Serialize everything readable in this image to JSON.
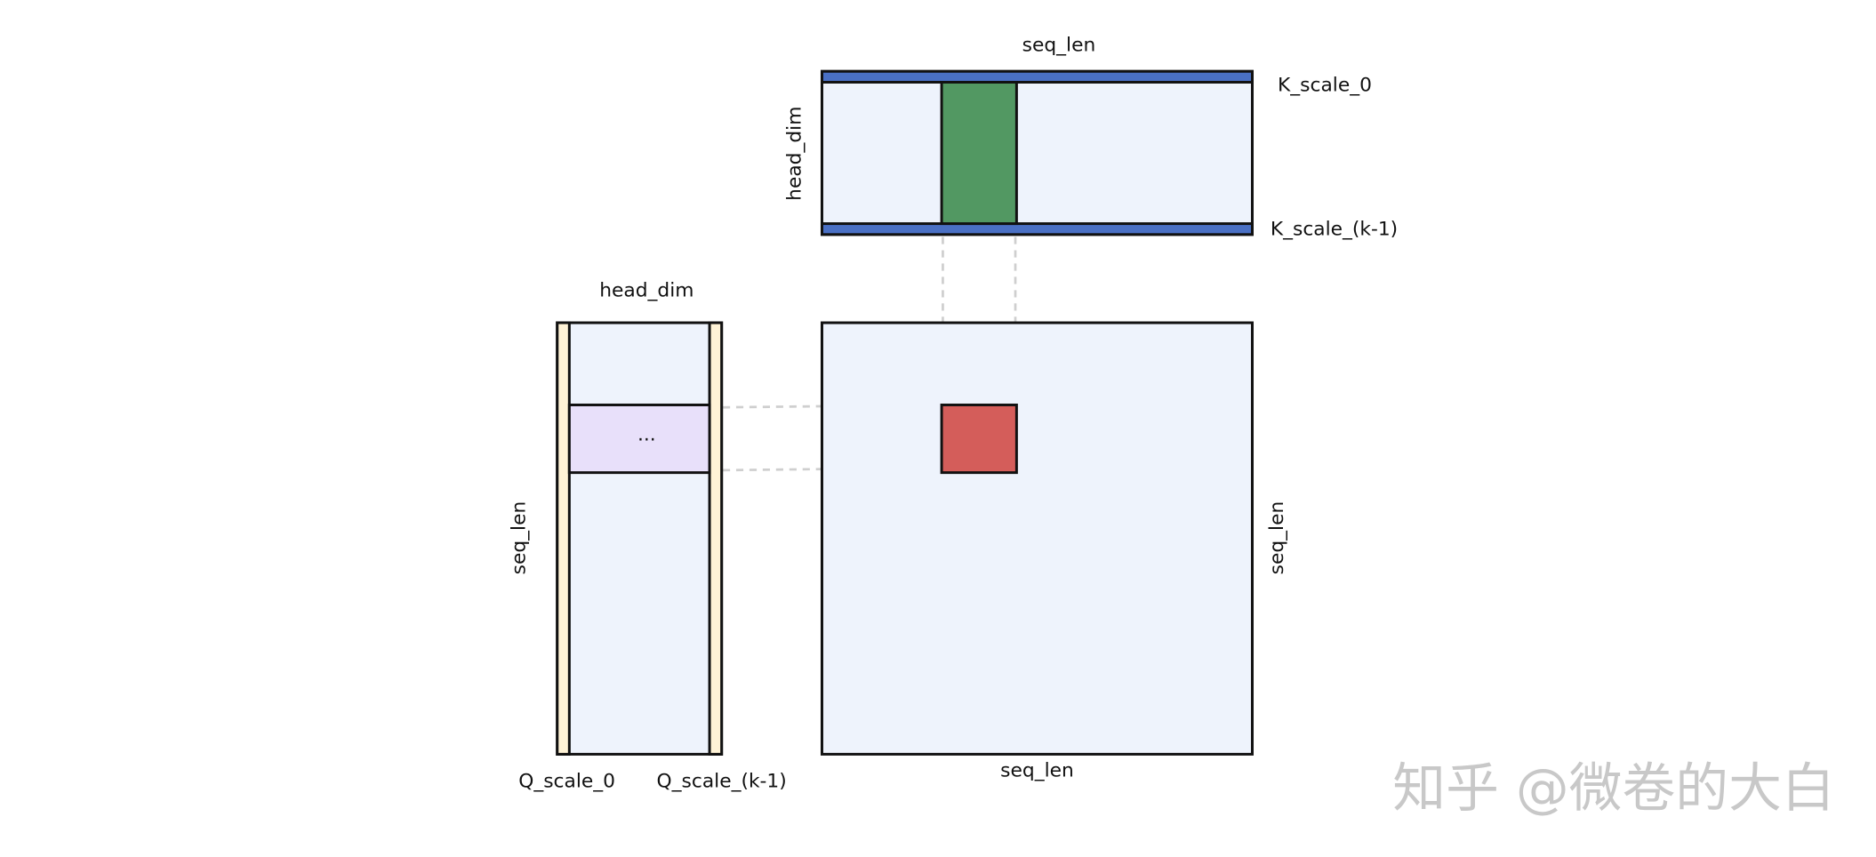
{
  "k_matrix": {
    "top_label": "seq_len",
    "side_label": "head_dim",
    "scale_top": "K_scale_0",
    "scale_bottom": "K_scale_(k-1)"
  },
  "q_matrix": {
    "top_label": "head_dim",
    "side_label": "seq_len",
    "scale_left": "Q_scale_0",
    "scale_right": "Q_scale_(k-1)",
    "row_label": "..."
  },
  "output_matrix": {
    "side_label": "seq_len",
    "bottom_label": "seq_len"
  },
  "watermark": "知乎 @微卷的大白"
}
